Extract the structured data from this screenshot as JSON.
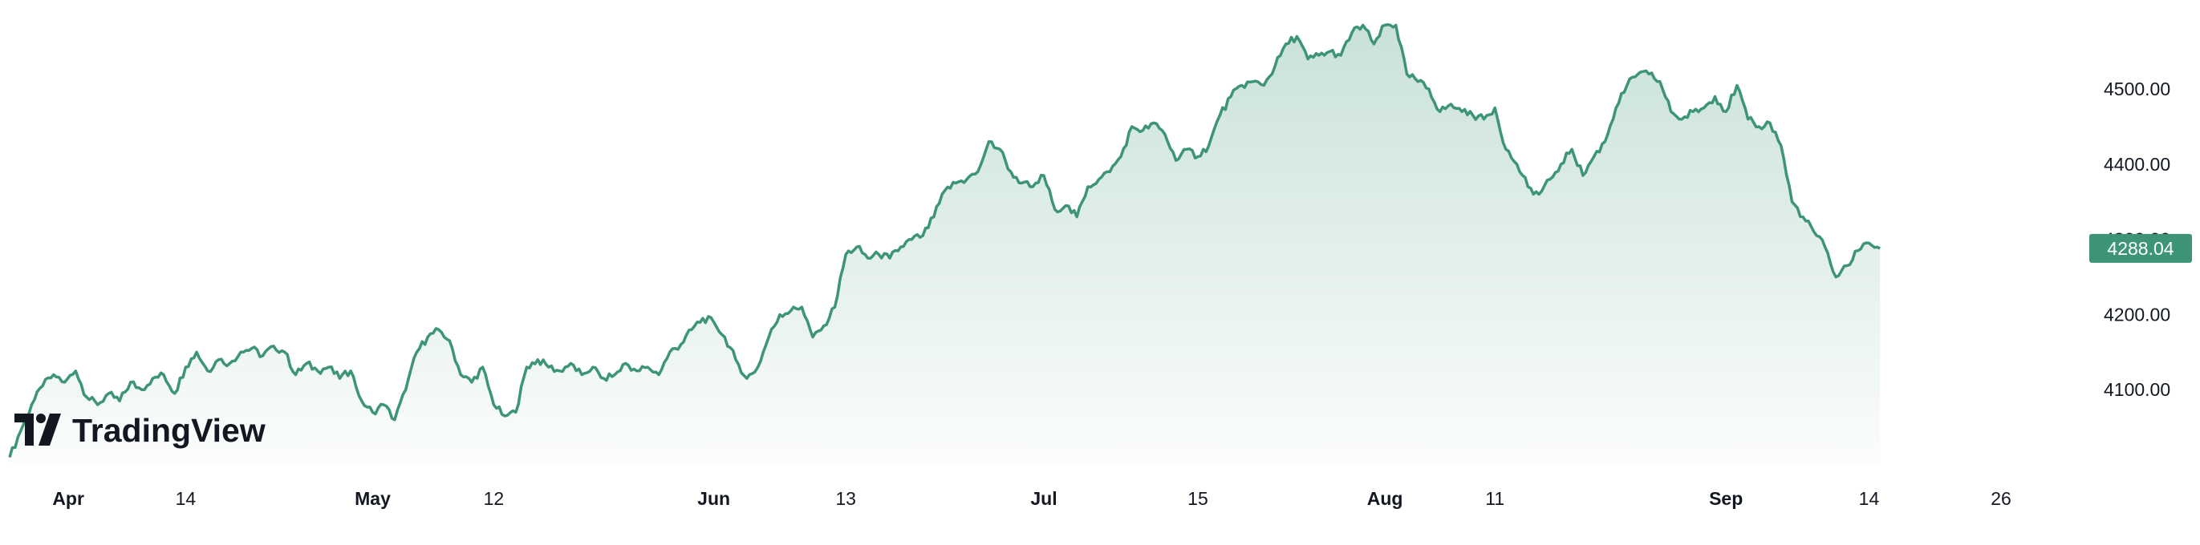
{
  "brand": {
    "name": "TradingView",
    "line_color": "#3d9478",
    "tag_color": "#3d9478"
  },
  "chart_data": {
    "type": "area",
    "title": "",
    "xlabel": "",
    "ylabel": "",
    "ylim": [
      4000,
      4610
    ],
    "y_ticks": [
      {
        "value": 4100,
        "label": "4100.00"
      },
      {
        "value": 4200,
        "label": "4200.00"
      },
      {
        "value": 4300,
        "label": "4300.00"
      },
      {
        "value": 4400,
        "label": "4400.00"
      },
      {
        "value": 4500,
        "label": "4500.00"
      }
    ],
    "x_ticks": [
      {
        "day": 0,
        "label": "Apr",
        "bold": true
      },
      {
        "day": 13,
        "label": "14",
        "bold": false
      },
      {
        "day": 30,
        "label": "May",
        "bold": true
      },
      {
        "day": 41,
        "label": "12",
        "bold": false
      },
      {
        "day": 61,
        "label": "Jun",
        "bold": true
      },
      {
        "day": 73,
        "label": "13",
        "bold": false
      },
      {
        "day": 91,
        "label": "Jul",
        "bold": true
      },
      {
        "day": 105,
        "label": "15",
        "bold": false
      },
      {
        "day": 122,
        "label": "Aug",
        "bold": true
      },
      {
        "day": 132,
        "label": "11",
        "bold": false
      },
      {
        "day": 153,
        "label": "Sep",
        "bold": true
      },
      {
        "day": 166,
        "label": "14",
        "bold": false
      },
      {
        "day": 178,
        "label": "26",
        "bold": false
      }
    ],
    "xlim": [
      -3,
      185
    ],
    "last_price_label": "4288.04",
    "last_price": 4288.04,
    "grid": false,
    "series": [
      {
        "points": [
          [
            -3,
            4010
          ],
          [
            -2,
            4045
          ],
          [
            -1,
            4080
          ],
          [
            0,
            4105
          ],
          [
            1,
            4120
          ],
          [
            2,
            4110
          ],
          [
            3,
            4125
          ],
          [
            4,
            4090
          ],
          [
            5,
            4080
          ],
          [
            6,
            4095
          ],
          [
            7,
            4085
          ],
          [
            8,
            4110
          ],
          [
            9,
            4100
          ],
          [
            10,
            4115
          ],
          [
            11,
            4120
          ],
          [
            12,
            4095
          ],
          [
            13,
            4130
          ],
          [
            14,
            4150
          ],
          [
            15,
            4125
          ],
          [
            16,
            4140
          ],
          [
            17,
            4135
          ],
          [
            18,
            4150
          ],
          [
            19,
            4155
          ],
          [
            20,
            4145
          ],
          [
            21,
            4158
          ],
          [
            22,
            4150
          ],
          [
            23,
            4120
          ],
          [
            24,
            4135
          ],
          [
            25,
            4125
          ],
          [
            26,
            4130
          ],
          [
            27,
            4115
          ],
          [
            28,
            4125
          ],
          [
            29,
            4085
          ],
          [
            30,
            4070
          ],
          [
            31,
            4080
          ],
          [
            32,
            4060
          ],
          [
            33,
            4100
          ],
          [
            34,
            4150
          ],
          [
            35,
            4170
          ],
          [
            36,
            4180
          ],
          [
            37,
            4165
          ],
          [
            38,
            4120
          ],
          [
            39,
            4110
          ],
          [
            40,
            4130
          ],
          [
            41,
            4080
          ],
          [
            42,
            4065
          ],
          [
            43,
            4070
          ],
          [
            44,
            4130
          ],
          [
            45,
            4140
          ],
          [
            46,
            4130
          ],
          [
            47,
            4125
          ],
          [
            48,
            4135
          ],
          [
            49,
            4120
          ],
          [
            50,
            4130
          ],
          [
            51,
            4115
          ],
          [
            52,
            4120
          ],
          [
            53,
            4135
          ],
          [
            54,
            4125
          ],
          [
            55,
            4130
          ],
          [
            56,
            4120
          ],
          [
            57,
            4150
          ],
          [
            58,
            4160
          ],
          [
            59,
            4180
          ],
          [
            60,
            4195
          ],
          [
            61,
            4190
          ],
          [
            62,
            4170
          ],
          [
            63,
            4140
          ],
          [
            64,
            4115
          ],
          [
            65,
            4130
          ],
          [
            66,
            4170
          ],
          [
            67,
            4200
          ],
          [
            68,
            4205
          ],
          [
            69,
            4210
          ],
          [
            70,
            4170
          ],
          [
            71,
            4185
          ],
          [
            72,
            4210
          ],
          [
            73,
            4280
          ],
          [
            74,
            4290
          ],
          [
            75,
            4275
          ],
          [
            76,
            4280
          ],
          [
            77,
            4275
          ],
          [
            78,
            4290
          ],
          [
            79,
            4300
          ],
          [
            80,
            4305
          ],
          [
            81,
            4330
          ],
          [
            82,
            4365
          ],
          [
            83,
            4375
          ],
          [
            84,
            4380
          ],
          [
            85,
            4390
          ],
          [
            86,
            4430
          ],
          [
            87,
            4420
          ],
          [
            88,
            4390
          ],
          [
            89,
            4375
          ],
          [
            90,
            4370
          ],
          [
            91,
            4385
          ],
          [
            92,
            4340
          ],
          [
            93,
            4345
          ],
          [
            94,
            4330
          ],
          [
            95,
            4370
          ],
          [
            96,
            4380
          ],
          [
            97,
            4390
          ],
          [
            98,
            4410
          ],
          [
            99,
            4450
          ],
          [
            100,
            4445
          ],
          [
            101,
            4455
          ],
          [
            102,
            4440
          ],
          [
            103,
            4405
          ],
          [
            104,
            4420
          ],
          [
            105,
            4410
          ],
          [
            106,
            4425
          ],
          [
            107,
            4465
          ],
          [
            108,
            4490
          ],
          [
            109,
            4505
          ],
          [
            110,
            4510
          ],
          [
            111,
            4505
          ],
          [
            112,
            4530
          ],
          [
            113,
            4560
          ],
          [
            114,
            4570
          ],
          [
            115,
            4540
          ],
          [
            116,
            4545
          ],
          [
            117,
            4550
          ],
          [
            118,
            4545
          ],
          [
            119,
            4575
          ],
          [
            120,
            4585
          ],
          [
            121,
            4560
          ],
          [
            122,
            4585
          ],
          [
            123,
            4585
          ],
          [
            124,
            4520
          ],
          [
            125,
            4510
          ],
          [
            126,
            4500
          ],
          [
            127,
            4470
          ],
          [
            128,
            4480
          ],
          [
            129,
            4470
          ],
          [
            130,
            4465
          ],
          [
            131,
            4460
          ],
          [
            132,
            4475
          ],
          [
            133,
            4420
          ],
          [
            134,
            4400
          ],
          [
            135,
            4370
          ],
          [
            136,
            4360
          ],
          [
            137,
            4380
          ],
          [
            138,
            4400
          ],
          [
            139,
            4420
          ],
          [
            140,
            4385
          ],
          [
            141,
            4410
          ],
          [
            142,
            4430
          ],
          [
            143,
            4475
          ],
          [
            144,
            4505
          ],
          [
            145,
            4520
          ],
          [
            146,
            4520
          ],
          [
            147,
            4510
          ],
          [
            148,
            4470
          ],
          [
            149,
            4460
          ],
          [
            150,
            4470
          ],
          [
            151,
            4475
          ],
          [
            152,
            4490
          ],
          [
            153,
            4470
          ],
          [
            154,
            4505
          ],
          [
            155,
            4460
          ],
          [
            156,
            4450
          ],
          [
            157,
            4455
          ],
          [
            158,
            4425
          ],
          [
            159,
            4350
          ],
          [
            160,
            4330
          ],
          [
            161,
            4310
          ],
          [
            162,
            4290
          ],
          [
            163,
            4250
          ],
          [
            164,
            4265
          ],
          [
            165,
            4285
          ],
          [
            166,
            4295
          ],
          [
            167,
            4288.04
          ]
        ]
      }
    ]
  }
}
